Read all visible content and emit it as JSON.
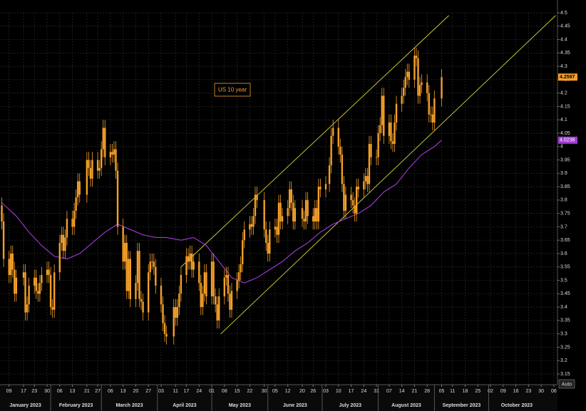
{
  "chart_data": {
    "type": "candlestick",
    "annotation": "US 10 year",
    "auto_button": "Auto",
    "color": "#f5a029",
    "grid": true,
    "xlim": [
      "2023-01-04",
      "2023-11-08"
    ],
    "ylim": [
      3.11,
      4.5
    ],
    "yticks": [
      3.15,
      3.2,
      3.25,
      3.3,
      3.35,
      3.4,
      3.45,
      3.5,
      3.55,
      3.6,
      3.65,
      3.7,
      3.75,
      3.8,
      3.85,
      3.9,
      3.95,
      4,
      4.05,
      4.1,
      4.15,
      4.2,
      4.25,
      4.3,
      4.35,
      4.4,
      4.45,
      4.5
    ],
    "xticks": [
      {
        "value": "2023-01-09",
        "label": "09"
      },
      {
        "value": "2023-01-17",
        "label": "17"
      },
      {
        "value": "2023-01-23",
        "label": "23"
      },
      {
        "value": "2023-01-30",
        "label": "30"
      },
      {
        "value": "2023-02-06",
        "label": "06"
      },
      {
        "value": "2023-02-13",
        "label": "13"
      },
      {
        "value": "2023-02-21",
        "label": "21"
      },
      {
        "value": "2023-02-27",
        "label": "27"
      },
      {
        "value": "2023-03-06",
        "label": "06"
      },
      {
        "value": "2023-03-13",
        "label": "13"
      },
      {
        "value": "2023-03-20",
        "label": "20"
      },
      {
        "value": "2023-03-27",
        "label": "27"
      },
      {
        "value": "2023-04-03",
        "label": "03"
      },
      {
        "value": "2023-04-11",
        "label": "11"
      },
      {
        "value": "2023-04-17",
        "label": "17"
      },
      {
        "value": "2023-04-24",
        "label": "24"
      },
      {
        "value": "2023-05-01",
        "label": "01"
      },
      {
        "value": "2023-05-08",
        "label": "08"
      },
      {
        "value": "2023-05-15",
        "label": "15"
      },
      {
        "value": "2023-05-22",
        "label": "22"
      },
      {
        "value": "2023-05-30",
        "label": "30"
      },
      {
        "value": "2023-06-05",
        "label": "05"
      },
      {
        "value": "2023-06-12",
        "label": "12"
      },
      {
        "value": "2023-06-20",
        "label": "20"
      },
      {
        "value": "2023-06-26",
        "label": "26"
      },
      {
        "value": "2023-07-03",
        "label": "03"
      },
      {
        "value": "2023-07-10",
        "label": "10"
      },
      {
        "value": "2023-07-17",
        "label": "17"
      },
      {
        "value": "2023-07-24",
        "label": "24"
      },
      {
        "value": "2023-07-31",
        "label": "31"
      },
      {
        "value": "2023-08-07",
        "label": "07"
      },
      {
        "value": "2023-08-14",
        "label": "14"
      },
      {
        "value": "2023-08-21",
        "label": "21"
      },
      {
        "value": "2023-08-28",
        "label": "28"
      },
      {
        "value": "2023-09-05",
        "label": "05"
      },
      {
        "value": "2023-09-11",
        "label": "11"
      },
      {
        "value": "2023-09-18",
        "label": "18"
      },
      {
        "value": "2023-09-25",
        "label": "25"
      },
      {
        "value": "2023-10-02",
        "label": "02"
      },
      {
        "value": "2023-10-09",
        "label": "09"
      },
      {
        "value": "2023-10-16",
        "label": "16"
      },
      {
        "value": "2023-10-23",
        "label": "23"
      },
      {
        "value": "2023-10-30",
        "label": "30"
      },
      {
        "value": "2023-11-06",
        "label": "06"
      }
    ],
    "months": [
      {
        "value": "2023-01",
        "label": "January 2023"
      },
      {
        "value": "2023-02",
        "label": "February 2023"
      },
      {
        "value": "2023-03",
        "label": "March 2023"
      },
      {
        "value": "2023-04",
        "label": "April 2023"
      },
      {
        "value": "2023-05",
        "label": "May 2023"
      },
      {
        "value": "2023-06",
        "label": "June 2023"
      },
      {
        "value": "2023-07",
        "label": "July 2023"
      },
      {
        "value": "2023-08",
        "label": "August 2023"
      },
      {
        "value": "2023-09",
        "label": "September 2023"
      },
      {
        "value": "2023-10",
        "label": "October 2023"
      }
    ],
    "x": [
      "2023-01-05",
      "2023-01-06",
      "2023-01-09",
      "2023-01-10",
      "2023-01-11",
      "2023-01-12",
      "2023-01-13",
      "2023-01-17",
      "2023-01-18",
      "2023-01-19",
      "2023-01-20",
      "2023-01-23",
      "2023-01-24",
      "2023-01-25",
      "2023-01-26",
      "2023-01-27",
      "2023-01-30",
      "2023-01-31",
      "2023-02-01",
      "2023-02-02",
      "2023-02-03",
      "2023-02-06",
      "2023-02-07",
      "2023-02-08",
      "2023-02-09",
      "2023-02-10",
      "2023-02-13",
      "2023-02-14",
      "2023-02-15",
      "2023-02-16",
      "2023-02-17",
      "2023-02-21",
      "2023-02-22",
      "2023-02-23",
      "2023-02-24",
      "2023-02-27",
      "2023-02-28",
      "2023-03-01",
      "2023-03-02",
      "2023-03-03",
      "2023-03-06",
      "2023-03-07",
      "2023-03-08",
      "2023-03-09",
      "2023-03-10",
      "2023-03-13",
      "2023-03-14",
      "2023-03-15",
      "2023-03-16",
      "2023-03-17",
      "2023-03-20",
      "2023-03-21",
      "2023-03-22",
      "2023-03-23",
      "2023-03-24",
      "2023-03-27",
      "2023-03-28",
      "2023-03-29",
      "2023-03-30",
      "2023-03-31",
      "2023-04-03",
      "2023-04-04",
      "2023-04-05",
      "2023-04-06",
      "2023-04-10",
      "2023-04-11",
      "2023-04-12",
      "2023-04-13",
      "2023-04-14",
      "2023-04-17",
      "2023-04-18",
      "2023-04-19",
      "2023-04-20",
      "2023-04-21",
      "2023-04-24",
      "2023-04-25",
      "2023-04-26",
      "2023-04-27",
      "2023-04-28",
      "2023-05-01",
      "2023-05-02",
      "2023-05-03",
      "2023-05-04",
      "2023-05-05",
      "2023-05-08",
      "2023-05-09",
      "2023-05-10",
      "2023-05-11",
      "2023-05-12",
      "2023-05-15",
      "2023-05-16",
      "2023-05-17",
      "2023-05-18",
      "2023-05-19",
      "2023-05-22",
      "2023-05-23",
      "2023-05-24",
      "2023-05-25",
      "2023-05-26",
      "2023-05-30",
      "2023-05-31",
      "2023-06-01",
      "2023-06-02",
      "2023-06-05",
      "2023-06-06",
      "2023-06-07",
      "2023-06-08",
      "2023-06-09",
      "2023-06-12",
      "2023-06-13",
      "2023-06-14",
      "2023-06-15",
      "2023-06-16",
      "2023-06-20",
      "2023-06-21",
      "2023-06-22",
      "2023-06-23",
      "2023-06-26",
      "2023-06-27",
      "2023-06-28",
      "2023-06-29",
      "2023-06-30",
      "2023-07-03",
      "2023-07-05",
      "2023-07-06",
      "2023-07-07",
      "2023-07-10",
      "2023-07-11",
      "2023-07-12",
      "2023-07-13",
      "2023-07-14",
      "2023-07-17",
      "2023-07-18",
      "2023-07-19",
      "2023-07-20",
      "2023-07-21",
      "2023-07-24",
      "2023-07-25",
      "2023-07-26",
      "2023-07-27",
      "2023-07-28",
      "2023-07-31",
      "2023-08-01",
      "2023-08-02",
      "2023-08-03",
      "2023-08-04",
      "2023-08-07",
      "2023-08-08",
      "2023-08-09",
      "2023-08-10",
      "2023-08-11",
      "2023-08-14",
      "2023-08-15",
      "2023-08-16",
      "2023-08-17",
      "2023-08-18",
      "2023-08-21",
      "2023-08-22",
      "2023-08-23",
      "2023-08-24",
      "2023-08-25",
      "2023-08-28",
      "2023-08-29",
      "2023-08-30",
      "2023-08-31",
      "2023-09-01",
      "2023-09-05"
    ],
    "open": [
      3.78,
      3.72,
      3.58,
      3.52,
      3.6,
      3.54,
      3.45,
      3.51,
      3.53,
      3.38,
      3.41,
      3.48,
      3.51,
      3.46,
      3.45,
      3.49,
      3.52,
      3.54,
      3.52,
      3.4,
      3.39,
      3.53,
      3.64,
      3.67,
      3.61,
      3.66,
      3.73,
      3.7,
      3.76,
      3.81,
      3.87,
      3.82,
      3.95,
      3.92,
      3.88,
      3.95,
      3.91,
      3.92,
      3.99,
      4.07,
      3.96,
      3.98,
      3.97,
      3.99,
      3.91,
      3.7,
      3.57,
      3.64,
      3.46,
      3.58,
      3.43,
      3.49,
      3.61,
      3.43,
      3.42,
      3.38,
      3.53,
      3.57,
      3.57,
      3.55,
      3.48,
      3.41,
      3.34,
      3.3,
      3.29,
      3.4,
      3.36,
      3.4,
      3.45,
      3.52,
      3.59,
      3.57,
      3.6,
      3.54,
      3.57,
      3.49,
      3.4,
      3.45,
      3.53,
      3.44,
      3.57,
      3.44,
      3.41,
      3.35,
      3.44,
      3.51,
      3.52,
      3.45,
      3.39,
      3.46,
      3.5,
      3.53,
      3.56,
      3.65,
      3.69,
      3.71,
      3.7,
      3.74,
      3.82,
      3.8,
      3.69,
      3.64,
      3.6,
      3.69,
      3.7,
      3.67,
      3.79,
      3.72,
      3.74,
      3.77,
      3.84,
      3.79,
      3.72,
      3.77,
      3.73,
      3.72,
      3.8,
      3.74,
      3.72,
      3.77,
      3.72,
      3.85,
      3.84,
      3.86,
      3.93,
      4.04,
      4.07,
      4.0,
      3.97,
      3.86,
      3.76,
      3.82,
      3.8,
      3.78,
      3.75,
      3.85,
      3.84,
      3.87,
      3.89,
      3.86,
      4.01,
      3.96,
      3.96,
      4.05,
      4.08,
      4.19,
      4.04,
      4.09,
      4.02,
      4.01,
      4.09,
      4.16,
      4.19,
      4.22,
      4.26,
      4.28,
      4.25,
      4.34,
      4.33,
      4.19,
      4.23,
      4.24,
      4.2,
      4.12,
      4.12,
      4.09,
      4.18
    ],
    "high": [
      3.81,
      3.75,
      3.61,
      3.63,
      3.63,
      3.57,
      3.54,
      3.56,
      3.56,
      3.44,
      3.51,
      3.54,
      3.54,
      3.49,
      3.52,
      3.55,
      3.57,
      3.57,
      3.55,
      3.43,
      3.56,
      3.67,
      3.7,
      3.7,
      3.69,
      3.76,
      3.76,
      3.79,
      3.84,
      3.9,
      3.9,
      3.98,
      3.98,
      3.95,
      3.98,
      3.98,
      3.95,
      4.02,
      4.1,
      4.1,
      4.01,
      4.01,
      4.02,
      4.02,
      3.94,
      3.73,
      3.67,
      3.67,
      3.61,
      3.61,
      3.52,
      3.64,
      3.64,
      3.46,
      3.45,
      3.56,
      3.6,
      3.6,
      3.6,
      3.58,
      3.51,
      3.44,
      3.37,
      3.33,
      3.43,
      3.43,
      3.43,
      3.48,
      3.55,
      3.62,
      3.62,
      3.63,
      3.63,
      3.6,
      3.6,
      3.52,
      3.48,
      3.56,
      3.56,
      3.6,
      3.6,
      3.47,
      3.44,
      3.47,
      3.54,
      3.55,
      3.55,
      3.48,
      3.49,
      3.53,
      3.56,
      3.59,
      3.68,
      3.72,
      3.74,
      3.74,
      3.77,
      3.85,
      3.85,
      3.83,
      3.72,
      3.67,
      3.72,
      3.73,
      3.73,
      3.82,
      3.82,
      3.77,
      3.8,
      3.87,
      3.87,
      3.82,
      3.8,
      3.8,
      3.76,
      3.83,
      3.83,
      3.77,
      3.8,
      3.8,
      3.88,
      3.88,
      3.89,
      3.96,
      4.07,
      4.1,
      4.1,
      4.03,
      4.0,
      3.89,
      3.85,
      3.85,
      3.83,
      3.81,
      3.88,
      3.88,
      3.9,
      3.92,
      3.92,
      4.04,
      4.04,
      3.99,
      4.08,
      4.11,
      4.22,
      4.22,
      4.12,
      4.12,
      4.05,
      4.12,
      4.19,
      4.22,
      4.25,
      4.29,
      4.31,
      4.31,
      4.37,
      4.37,
      4.36,
      4.26,
      4.27,
      4.27,
      4.23,
      4.15,
      4.15,
      4.21,
      4.29
    ],
    "low": [
      3.69,
      3.55,
      3.49,
      3.49,
      3.51,
      3.42,
      3.42,
      3.48,
      3.35,
      3.35,
      3.38,
      3.45,
      3.43,
      3.42,
      3.42,
      3.46,
      3.49,
      3.49,
      3.37,
      3.36,
      3.36,
      3.5,
      3.61,
      3.58,
      3.58,
      3.63,
      3.67,
      3.67,
      3.73,
      3.78,
      3.79,
      3.79,
      3.89,
      3.85,
      3.85,
      3.88,
      3.88,
      3.89,
      3.96,
      3.93,
      3.93,
      3.94,
      3.94,
      3.88,
      3.67,
      3.54,
      3.54,
      3.43,
      3.43,
      3.4,
      3.4,
      3.46,
      3.4,
      3.39,
      3.35,
      3.35,
      3.5,
      3.54,
      3.52,
      3.45,
      3.38,
      3.31,
      3.27,
      3.26,
      3.26,
      3.33,
      3.33,
      3.37,
      3.42,
      3.49,
      3.54,
      3.54,
      3.51,
      3.51,
      3.46,
      3.37,
      3.37,
      3.42,
      3.41,
      3.41,
      3.41,
      3.38,
      3.32,
      3.32,
      3.41,
      3.48,
      3.42,
      3.36,
      3.36,
      3.43,
      3.47,
      3.5,
      3.53,
      3.62,
      3.66,
      3.67,
      3.67,
      3.71,
      3.77,
      3.66,
      3.61,
      3.57,
      3.57,
      3.66,
      3.64,
      3.64,
      3.69,
      3.69,
      3.71,
      3.74,
      3.76,
      3.69,
      3.69,
      3.7,
      3.69,
      3.69,
      3.71,
      3.69,
      3.69,
      3.69,
      3.69,
      3.81,
      3.81,
      3.83,
      3.9,
      4.01,
      3.97,
      3.94,
      3.83,
      3.73,
      3.73,
      3.77,
      3.75,
      3.72,
      3.72,
      3.81,
      3.81,
      3.84,
      3.83,
      3.83,
      3.93,
      3.93,
      3.93,
      4.02,
      4.05,
      4.01,
      4.01,
      3.99,
      3.98,
      3.98,
      4.06,
      4.13,
      4.16,
      4.19,
      4.23,
      4.22,
      4.22,
      4.3,
      4.16,
      4.16,
      4.2,
      4.17,
      4.09,
      4.09,
      4.06,
      4.06,
      4.15
    ],
    "close": [
      3.72,
      3.58,
      3.52,
      3.6,
      3.54,
      3.45,
      3.51,
      3.53,
      3.38,
      3.41,
      3.48,
      3.51,
      3.46,
      3.45,
      3.49,
      3.52,
      3.54,
      3.52,
      3.4,
      3.39,
      3.53,
      3.64,
      3.67,
      3.61,
      3.66,
      3.73,
      3.7,
      3.76,
      3.81,
      3.87,
      3.82,
      3.95,
      3.92,
      3.88,
      3.95,
      3.91,
      3.92,
      3.99,
      4.07,
      3.96,
      3.98,
      3.97,
      3.99,
      3.91,
      3.7,
      3.57,
      3.64,
      3.46,
      3.58,
      3.43,
      3.49,
      3.61,
      3.43,
      3.42,
      3.38,
      3.53,
      3.57,
      3.57,
      3.55,
      3.48,
      3.41,
      3.34,
      3.3,
      3.29,
      3.4,
      3.36,
      3.4,
      3.45,
      3.52,
      3.59,
      3.57,
      3.6,
      3.54,
      3.57,
      3.49,
      3.4,
      3.45,
      3.53,
      3.44,
      3.57,
      3.44,
      3.41,
      3.35,
      3.44,
      3.51,
      3.52,
      3.45,
      3.39,
      3.46,
      3.5,
      3.53,
      3.56,
      3.65,
      3.69,
      3.71,
      3.7,
      3.74,
      3.82,
      3.8,
      3.69,
      3.64,
      3.6,
      3.69,
      3.7,
      3.67,
      3.79,
      3.72,
      3.74,
      3.77,
      3.84,
      3.79,
      3.72,
      3.77,
      3.73,
      3.72,
      3.8,
      3.74,
      3.72,
      3.77,
      3.72,
      3.85,
      3.84,
      3.86,
      3.93,
      4.04,
      4.07,
      4.0,
      3.97,
      3.86,
      3.76,
      3.82,
      3.8,
      3.78,
      3.75,
      3.85,
      3.84,
      3.87,
      3.89,
      3.86,
      4.01,
      3.96,
      3.96,
      4.05,
      4.08,
      4.19,
      4.04,
      4.09,
      4.02,
      4.01,
      4.09,
      4.16,
      4.19,
      4.22,
      4.26,
      4.28,
      4.25,
      4.34,
      4.33,
      4.19,
      4.23,
      4.24,
      4.2,
      4.12,
      4.12,
      4.09,
      4.18,
      4.2597
    ],
    "moving_average": {
      "color": "#a23bd6",
      "x": [
        "2023-01-05",
        "2023-01-13",
        "2023-01-20",
        "2023-01-27",
        "2023-02-03",
        "2023-02-10",
        "2023-02-17",
        "2023-02-24",
        "2023-03-03",
        "2023-03-10",
        "2023-03-17",
        "2023-03-24",
        "2023-03-31",
        "2023-04-06",
        "2023-04-14",
        "2023-04-21",
        "2023-04-28",
        "2023-05-05",
        "2023-05-12",
        "2023-05-19",
        "2023-05-26",
        "2023-06-02",
        "2023-06-09",
        "2023-06-16",
        "2023-06-23",
        "2023-06-30",
        "2023-07-07",
        "2023-07-14",
        "2023-07-21",
        "2023-07-28",
        "2023-08-04",
        "2023-08-11",
        "2023-08-18",
        "2023-08-25",
        "2023-09-01",
        "2023-09-05"
      ],
      "values": [
        3.79,
        3.74,
        3.68,
        3.63,
        3.59,
        3.58,
        3.6,
        3.64,
        3.68,
        3.71,
        3.69,
        3.67,
        3.66,
        3.66,
        3.65,
        3.66,
        3.63,
        3.57,
        3.51,
        3.49,
        3.51,
        3.54,
        3.57,
        3.61,
        3.64,
        3.68,
        3.71,
        3.73,
        3.75,
        3.78,
        3.83,
        3.86,
        3.92,
        3.97,
        4.0,
        4.0238
      ]
    },
    "trend_lines": [
      {
        "color": "#d4d43c",
        "x": [
          "2023-04-14",
          "2023-09-09"
        ],
        "values": [
          3.55,
          4.49
        ]
      },
      {
        "color": "#d4d43c",
        "x": [
          "2023-05-06",
          "2023-11-07"
        ],
        "values": [
          3.3,
          4.49
        ]
      }
    ]
  }
}
